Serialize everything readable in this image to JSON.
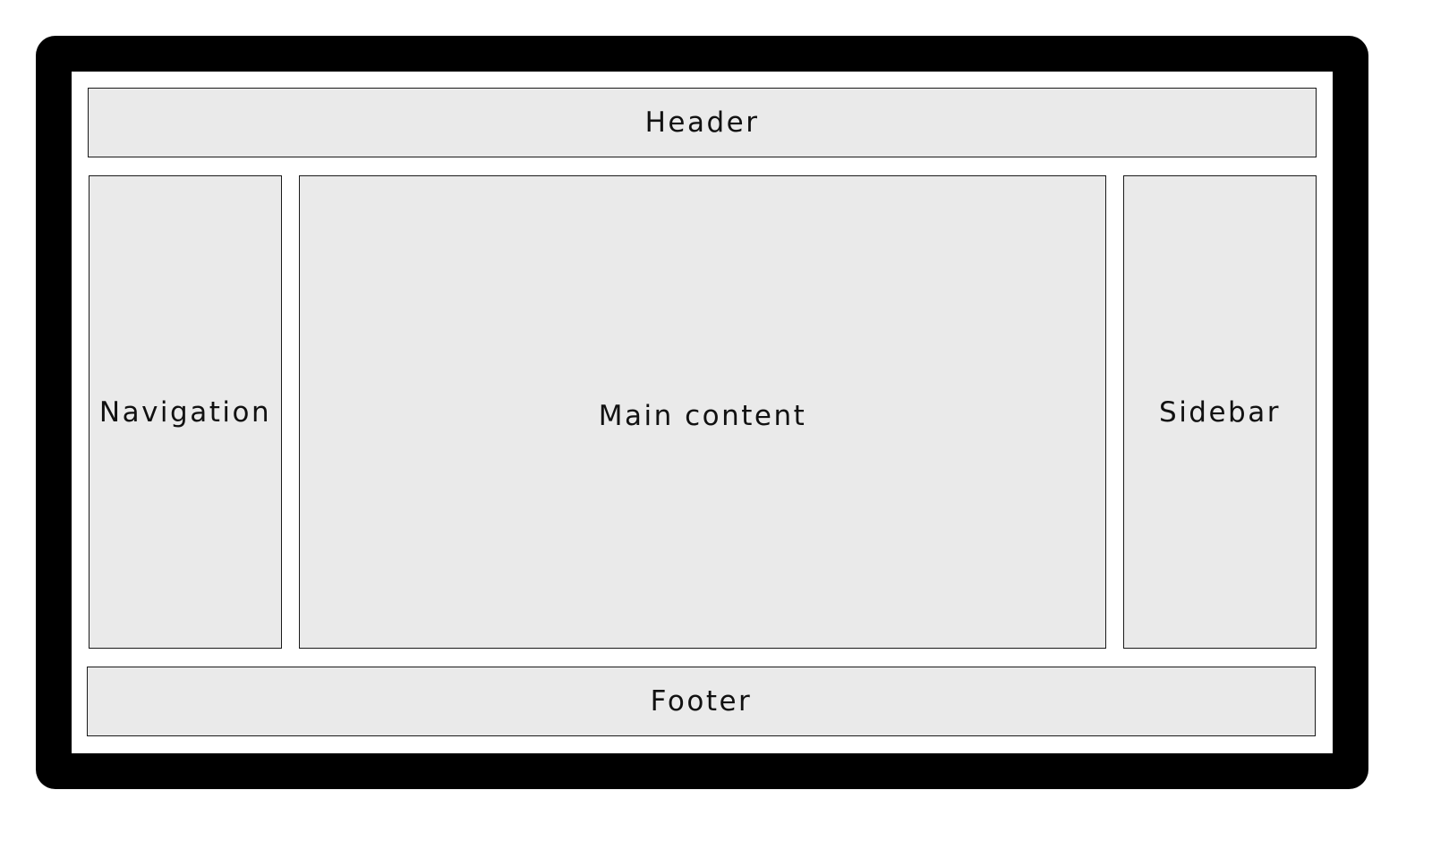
{
  "diagram": {
    "colors": {
      "frame": "#000000",
      "canvas": "#ffffff",
      "region_fill": "#eaeaea",
      "region_border": "#1a1a1a",
      "text": "#111111"
    },
    "regions": {
      "header": "Header",
      "navigation": "Navigation",
      "main": "Main content",
      "sidebar": "Sidebar",
      "footer": "Footer"
    }
  }
}
